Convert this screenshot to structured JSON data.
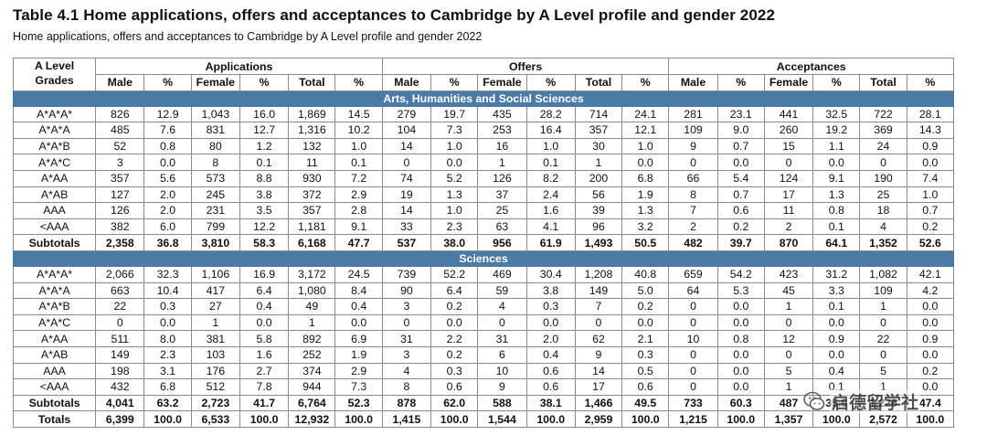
{
  "title": "Table 4.1 Home applications, offers and acceptances to Cambridge by A Level profile and gender 2022",
  "subtitle": "Home applications, offers and acceptances to Cambridge by A Level profile and gender 2022",
  "header": {
    "grade_label_line1": "A Level",
    "grade_label_line2": "Grades",
    "groups": [
      "Applications",
      "Offers",
      "Acceptances"
    ],
    "columns": [
      "Male",
      "%",
      "Female",
      "%",
      "Total",
      "%"
    ]
  },
  "sections": [
    {
      "name": "Arts, Humanities and Social Sciences",
      "rows": [
        {
          "grade": "A*A*A*",
          "values": [
            "826",
            "12.9",
            "1,043",
            "16.0",
            "1,869",
            "14.5",
            "279",
            "19.7",
            "435",
            "28.2",
            "714",
            "24.1",
            "281",
            "23.1",
            "441",
            "32.5",
            "722",
            "28.1"
          ]
        },
        {
          "grade": "A*A*A",
          "values": [
            "485",
            "7.6",
            "831",
            "12.7",
            "1,316",
            "10.2",
            "104",
            "7.3",
            "253",
            "16.4",
            "357",
            "12.1",
            "109",
            "9.0",
            "260",
            "19.2",
            "369",
            "14.3"
          ]
        },
        {
          "grade": "A*A*B",
          "values": [
            "52",
            "0.8",
            "80",
            "1.2",
            "132",
            "1.0",
            "14",
            "1.0",
            "16",
            "1.0",
            "30",
            "1.0",
            "9",
            "0.7",
            "15",
            "1.1",
            "24",
            "0.9"
          ]
        },
        {
          "grade": "A*A*C",
          "values": [
            "3",
            "0.0",
            "8",
            "0.1",
            "11",
            "0.1",
            "0",
            "0.0",
            "1",
            "0.1",
            "1",
            "0.0",
            "0",
            "0.0",
            "0",
            "0.0",
            "0",
            "0.0"
          ]
        },
        {
          "grade": "A*AA",
          "values": [
            "357",
            "5.6",
            "573",
            "8.8",
            "930",
            "7.2",
            "74",
            "5.2",
            "126",
            "8.2",
            "200",
            "6.8",
            "66",
            "5.4",
            "124",
            "9.1",
            "190",
            "7.4"
          ]
        },
        {
          "grade": "A*AB",
          "values": [
            "127",
            "2.0",
            "245",
            "3.8",
            "372",
            "2.9",
            "19",
            "1.3",
            "37",
            "2.4",
            "56",
            "1.9",
            "8",
            "0.7",
            "17",
            "1.3",
            "25",
            "1.0"
          ]
        },
        {
          "grade": "AAA",
          "values": [
            "126",
            "2.0",
            "231",
            "3.5",
            "357",
            "2.8",
            "14",
            "1.0",
            "25",
            "1.6",
            "39",
            "1.3",
            "7",
            "0.6",
            "11",
            "0.8",
            "18",
            "0.7"
          ]
        },
        {
          "grade": "<AAA",
          "values": [
            "382",
            "6.0",
            "799",
            "12.2",
            "1,181",
            "9.1",
            "33",
            "2.3",
            "63",
            "4.1",
            "96",
            "3.2",
            "2",
            "0.2",
            "2",
            "0.1",
            "4",
            "0.2"
          ]
        }
      ],
      "subtotal": {
        "label": "Subtotals",
        "values": [
          "2,358",
          "36.8",
          "3,810",
          "58.3",
          "6,168",
          "47.7",
          "537",
          "38.0",
          "956",
          "61.9",
          "1,493",
          "50.5",
          "482",
          "39.7",
          "870",
          "64.1",
          "1,352",
          "52.6"
        ]
      }
    },
    {
      "name": "Sciences",
      "rows": [
        {
          "grade": "A*A*A*",
          "values": [
            "2,066",
            "32.3",
            "1,106",
            "16.9",
            "3,172",
            "24.5",
            "739",
            "52.2",
            "469",
            "30.4",
            "1,208",
            "40.8",
            "659",
            "54.2",
            "423",
            "31.2",
            "1,082",
            "42.1"
          ]
        },
        {
          "grade": "A*A*A",
          "values": [
            "663",
            "10.4",
            "417",
            "6.4",
            "1,080",
            "8.4",
            "90",
            "6.4",
            "59",
            "3.8",
            "149",
            "5.0",
            "64",
            "5.3",
            "45",
            "3.3",
            "109",
            "4.2"
          ]
        },
        {
          "grade": "A*A*B",
          "values": [
            "22",
            "0.3",
            "27",
            "0.4",
            "49",
            "0.4",
            "3",
            "0.2",
            "4",
            "0.3",
            "7",
            "0.2",
            "0",
            "0.0",
            "1",
            "0.1",
            "1",
            "0.0"
          ]
        },
        {
          "grade": "A*A*C",
          "values": [
            "0",
            "0.0",
            "1",
            "0.0",
            "1",
            "0.0",
            "0",
            "0.0",
            "0",
            "0.0",
            "0",
            "0.0",
            "0",
            "0.0",
            "0",
            "0.0",
            "0",
            "0.0"
          ]
        },
        {
          "grade": "A*AA",
          "values": [
            "511",
            "8.0",
            "381",
            "5.8",
            "892",
            "6.9",
            "31",
            "2.2",
            "31",
            "2.0",
            "62",
            "2.1",
            "10",
            "0.8",
            "12",
            "0.9",
            "22",
            "0.9"
          ]
        },
        {
          "grade": "A*AB",
          "values": [
            "149",
            "2.3",
            "103",
            "1.6",
            "252",
            "1.9",
            "3",
            "0.2",
            "6",
            "0.4",
            "9",
            "0.3",
            "0",
            "0.0",
            "0",
            "0.0",
            "0",
            "0.0"
          ]
        },
        {
          "grade": "AAA",
          "values": [
            "198",
            "3.1",
            "176",
            "2.7",
            "374",
            "2.9",
            "4",
            "0.3",
            "10",
            "0.6",
            "14",
            "0.5",
            "0",
            "0.0",
            "5",
            "0.4",
            "5",
            "0.2"
          ]
        },
        {
          "grade": "<AAA",
          "values": [
            "432",
            "6.8",
            "512",
            "7.8",
            "944",
            "7.3",
            "8",
            "0.6",
            "9",
            "0.6",
            "17",
            "0.6",
            "0",
            "0.0",
            "1",
            "0.1",
            "1",
            "0.0"
          ]
        }
      ],
      "subtotal": {
        "label": "Subtotals",
        "values": [
          "4,041",
          "63.2",
          "2,723",
          "41.7",
          "6,764",
          "52.3",
          "878",
          "62.0",
          "588",
          "38.1",
          "1,466",
          "49.5",
          "733",
          "60.3",
          "487",
          "35.9",
          "1,220",
          "47.4"
        ]
      }
    }
  ],
  "totals": {
    "label": "Totals",
    "values": [
      "6,399",
      "100.0",
      "6,533",
      "100.0",
      "12,932",
      "100.0",
      "1,415",
      "100.0",
      "1,544",
      "100.0",
      "2,959",
      "100.0",
      "1,215",
      "100.0",
      "1,357",
      "100.0",
      "2,572",
      "100.0"
    ]
  },
  "watermark": {
    "text": "启德留学社",
    "icon": "wechat-icon"
  },
  "colors": {
    "section_band": "#4a7ba6",
    "border": "#8a8a8a"
  }
}
